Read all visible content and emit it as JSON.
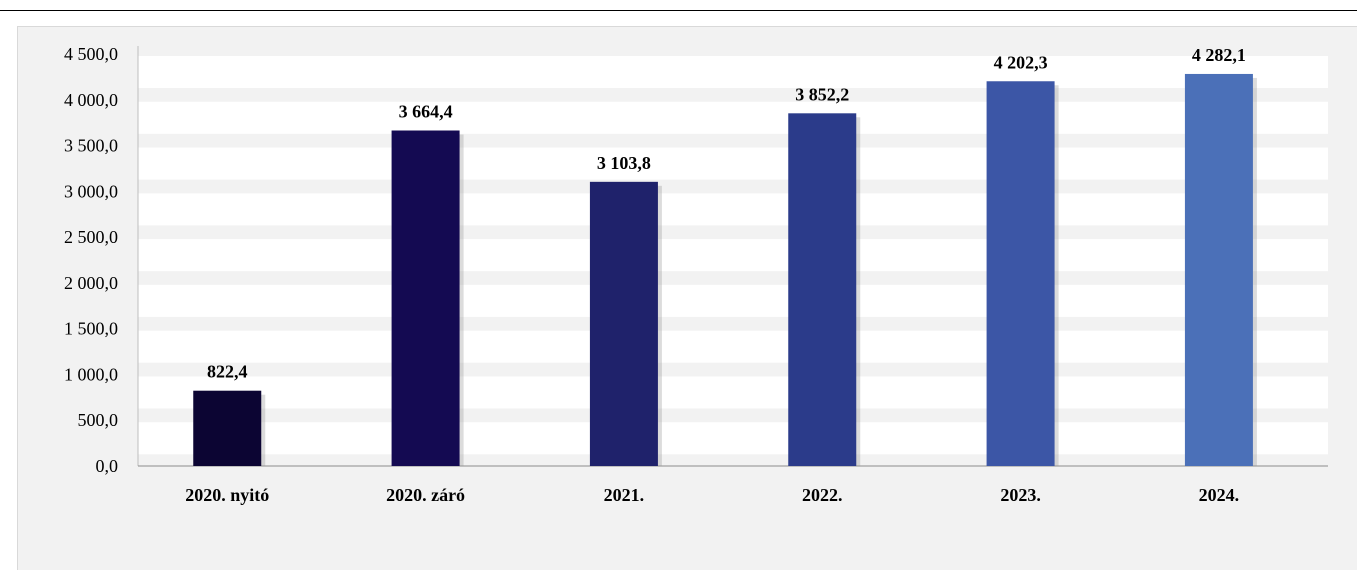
{
  "chart_data": {
    "type": "bar",
    "title": "",
    "xlabel": "",
    "ylabel": "",
    "ylim": [
      0,
      4500
    ],
    "yticks": [
      "0,0",
      "500,0",
      "1 000,0",
      "1 500,0",
      "2 000,0",
      "2 500,0",
      "3 000,0",
      "3 500,0",
      "4 000,0",
      "4 500,0"
    ],
    "ytick_values": [
      0,
      500,
      1000,
      1500,
      2000,
      2500,
      3000,
      3500,
      4000,
      4500
    ],
    "categories": [
      "2020. nyitó",
      "2020. záró",
      "2021.",
      "2022.",
      "2023.",
      "2024."
    ],
    "values": [
      822.4,
      3664.4,
      3103.8,
      3852.2,
      4202.3,
      4282.1
    ],
    "value_labels": [
      "822,4",
      "3 664,4",
      "3 103,8",
      "3 852,2",
      "4 202,3",
      "4 282,1"
    ],
    "bar_colors": [
      "#0c0533",
      "#140a52",
      "#1f226b",
      "#2b3b8a",
      "#3c56a6",
      "#4b70b8"
    ],
    "grid": "horizontal bands",
    "legend": "none"
  }
}
